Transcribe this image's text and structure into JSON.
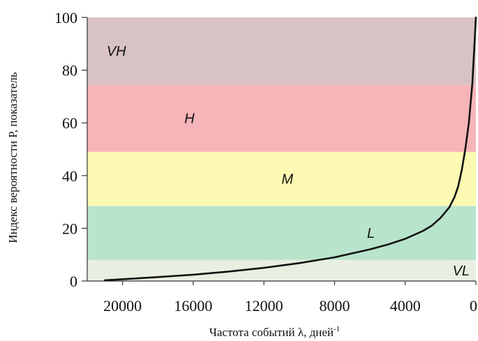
{
  "chart_data": {
    "type": "line",
    "title": "",
    "xlabel": "Частота событий λ, дней",
    "xlabel_superscript": "-1",
    "ylabel": "Индекс вероятности P, показатель",
    "x_reversed": true,
    "xlim": [
      0,
      22000
    ],
    "ylim": [
      0,
      100
    ],
    "x_ticks": [
      20000,
      16000,
      12000,
      8000,
      4000,
      0
    ],
    "y_ticks": [
      0,
      20,
      40,
      60,
      80,
      100
    ],
    "grid": false,
    "bands": [
      {
        "label": "VL",
        "from": 0,
        "to": 8,
        "color": "#e9eee2"
      },
      {
        "label": "L",
        "from": 8,
        "to": 28.5,
        "color": "#b8e4cc"
      },
      {
        "label": "M",
        "from": 28.5,
        "to": 49,
        "color": "#fcf9b2"
      },
      {
        "label": "H",
        "from": 49,
        "to": 74.5,
        "color": "#f6b5b8"
      },
      {
        "label": "VH",
        "from": 74.5,
        "to": 100,
        "color": "#d9c2c4"
      }
    ],
    "series": [
      {
        "color": "#111111",
        "x": [
          21000,
          20000,
          18000,
          16000,
          14000,
          12000,
          10000,
          8000,
          6000,
          5000,
          4000,
          3000,
          2500,
          2000,
          1500,
          1200,
          1000,
          800,
          600,
          400,
          200,
          80,
          0
        ],
        "y": [
          0.3,
          0.7,
          1.5,
          2.4,
          3.6,
          5.0,
          6.8,
          9.0,
          12.0,
          13.8,
          16.0,
          19.0,
          21.0,
          24.0,
          28.0,
          32.0,
          36.0,
          42.0,
          50.0,
          60.0,
          75.0,
          90.0,
          100.0
        ]
      }
    ]
  }
}
